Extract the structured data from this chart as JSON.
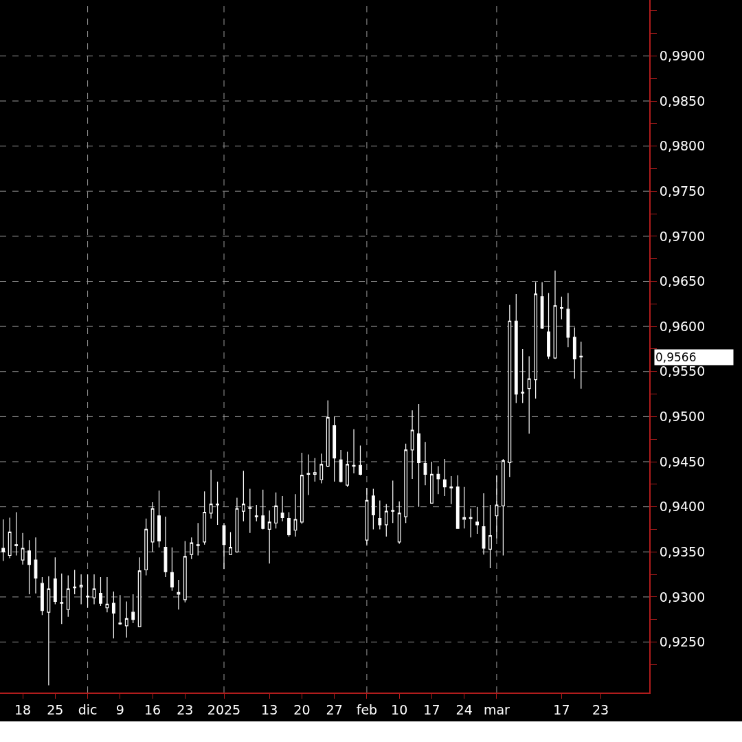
{
  "chart_data": {
    "type": "candlestick",
    "color": "#ffffff",
    "grid": "y",
    "categories": [
      null,
      null,
      null,
      "18",
      null,
      null,
      null,
      null,
      "25",
      null,
      null,
      null,
      null,
      "dic",
      null,
      null,
      null,
      null,
      "9",
      null,
      null,
      null,
      null,
      "16",
      null,
      null,
      null,
      null,
      "23",
      null,
      null,
      null,
      null,
      null,
      "2025",
      null,
      null,
      null,
      null,
      null,
      null,
      "13",
      null,
      null,
      null,
      null,
      "20",
      null,
      null,
      null,
      null,
      "27",
      null,
      null,
      null,
      null,
      "feb",
      null,
      null,
      null,
      null,
      "10",
      null,
      null,
      null,
      null,
      "17",
      null,
      null,
      null,
      null,
      "24",
      null,
      null,
      null,
      null,
      "mar",
      null,
      null,
      null,
      null,
      null,
      null,
      null,
      null,
      null,
      "17",
      null,
      null,
      null,
      null,
      null,
      "23",
      null,
      null,
      null,
      null,
      null,
      null,
      null
    ],
    "ohlc": [
      [
        0.9354,
        0.9386,
        0.934,
        0.935
      ],
      [
        0.9346,
        0.9388,
        0.9343,
        0.9372
      ],
      [
        0.9358,
        0.9394,
        0.9346,
        0.9357
      ],
      [
        0.9341,
        0.9371,
        0.9336,
        0.9354
      ],
      [
        0.9351,
        0.9363,
        0.9303,
        0.9336
      ],
      [
        0.9341,
        0.9366,
        0.9304,
        0.9321
      ],
      [
        0.9315,
        0.9322,
        0.928,
        0.9285
      ],
      [
        0.9283,
        0.9323,
        0.9202,
        0.9309
      ],
      [
        0.932,
        0.9344,
        0.9292,
        0.9295
      ],
      [
        0.9294,
        0.9326,
        0.927,
        0.9293
      ],
      [
        0.9286,
        0.9324,
        0.9278,
        0.9309
      ],
      [
        0.9311,
        0.933,
        0.9303,
        0.931
      ],
      [
        0.9311,
        0.9325,
        0.9292,
        0.9313
      ],
      [
        0.9301,
        0.9325,
        0.9288,
        0.93
      ],
      [
        0.9299,
        0.9325,
        0.9292,
        0.9309
      ],
      [
        0.9304,
        0.9322,
        0.929,
        0.9293
      ],
      [
        0.9288,
        0.9322,
        0.9283,
        0.9292
      ],
      [
        0.9293,
        0.9306,
        0.9254,
        0.9282
      ],
      [
        0.9271,
        0.9302,
        0.9269,
        0.927
      ],
      [
        0.9268,
        0.9295,
        0.9255,
        0.9276
      ],
      [
        0.9283,
        0.9303,
        0.9271,
        0.9275
      ],
      [
        0.9267,
        0.9344,
        0.9267,
        0.9329
      ],
      [
        0.933,
        0.9387,
        0.9324,
        0.9375
      ],
      [
        0.9361,
        0.9405,
        0.935,
        0.9398
      ],
      [
        0.939,
        0.9418,
        0.9355,
        0.9362
      ],
      [
        0.9355,
        0.9389,
        0.9322,
        0.9328
      ],
      [
        0.9327,
        0.9355,
        0.9307,
        0.9311
      ],
      [
        0.9303,
        0.9319,
        0.9286,
        0.9305
      ],
      [
        0.9297,
        0.9362,
        0.9294,
        0.9345
      ],
      [
        0.9347,
        0.9366,
        0.9342,
        0.936
      ],
      [
        0.9358,
        0.9382,
        0.9346,
        0.9357
      ],
      [
        0.9361,
        0.9417,
        0.9358,
        0.9394
      ],
      [
        0.9393,
        0.9441,
        0.9387,
        0.9403
      ],
      [
        0.9403,
        0.9428,
        0.938,
        0.9402
      ],
      [
        0.9379,
        0.9382,
        0.9331,
        0.9358
      ],
      [
        0.9347,
        0.9372,
        0.9347,
        0.9355
      ],
      [
        0.935,
        0.941,
        0.9349,
        0.9398
      ],
      [
        0.9395,
        0.944,
        0.9384,
        0.9403
      ],
      [
        0.9399,
        0.942,
        0.9371,
        0.9398
      ],
      [
        0.939,
        0.9402,
        0.9384,
        0.9389
      ],
      [
        0.939,
        0.9419,
        0.9375,
        0.9376
      ],
      [
        0.9375,
        0.9396,
        0.9337,
        0.9383
      ],
      [
        0.9382,
        0.9416,
        0.9376,
        0.9401
      ],
      [
        0.9393,
        0.9412,
        0.9384,
        0.9388
      ],
      [
        0.9387,
        0.9394,
        0.9367,
        0.9369
      ],
      [
        0.9374,
        0.9414,
        0.9367,
        0.9386
      ],
      [
        0.9383,
        0.946,
        0.9381,
        0.9435
      ],
      [
        0.9437,
        0.9458,
        0.9413,
        0.9436
      ],
      [
        0.9436,
        0.9454,
        0.9428,
        0.9438
      ],
      [
        0.943,
        0.9459,
        0.9426,
        0.9447
      ],
      [
        0.9445,
        0.9518,
        0.9444,
        0.9499
      ],
      [
        0.949,
        0.95,
        0.9428,
        0.9454
      ],
      [
        0.9452,
        0.9463,
        0.9427,
        0.9428
      ],
      [
        0.9424,
        0.9461,
        0.9422,
        0.9447
      ],
      [
        0.9446,
        0.9486,
        0.9437,
        0.9445
      ],
      [
        0.9446,
        0.9468,
        0.9435,
        0.9436
      ],
      [
        0.9363,
        0.9421,
        0.9357,
        0.9407
      ],
      [
        0.9412,
        0.942,
        0.9375,
        0.9391
      ],
      [
        0.9387,
        0.9407,
        0.9375,
        0.938
      ],
      [
        0.938,
        0.9403,
        0.9367,
        0.9395
      ],
      [
        0.9396,
        0.9429,
        0.9382,
        0.9395
      ],
      [
        0.9361,
        0.9406,
        0.9359,
        0.9393
      ],
      [
        0.9389,
        0.947,
        0.9382,
        0.9463
      ],
      [
        0.9463,
        0.9507,
        0.9431,
        0.9485
      ],
      [
        0.9481,
        0.9514,
        0.94,
        0.9449
      ],
      [
        0.9448,
        0.9472,
        0.9424,
        0.9436
      ],
      [
        0.9404,
        0.945,
        0.9404,
        0.9436
      ],
      [
        0.9436,
        0.9445,
        0.9414,
        0.9431
      ],
      [
        0.943,
        0.9453,
        0.9412,
        0.9422
      ],
      [
        0.9422,
        0.9434,
        0.9403,
        0.9421
      ],
      [
        0.9422,
        0.9435,
        0.9376,
        0.9376
      ],
      [
        0.9386,
        0.9422,
        0.9376,
        0.9388
      ],
      [
        0.9388,
        0.9398,
        0.9366,
        0.9387
      ],
      [
        0.9383,
        0.94,
        0.937,
        0.938
      ],
      [
        0.9378,
        0.9415,
        0.9347,
        0.9354
      ],
      [
        0.9353,
        0.9402,
        0.9332,
        0.9368
      ],
      [
        0.939,
        0.9435,
        0.9365,
        0.9402
      ],
      [
        0.9401,
        0.9453,
        0.9346,
        0.9451
      ],
      [
        0.9449,
        0.9624,
        0.9433,
        0.9606
      ],
      [
        0.9606,
        0.9636,
        0.9515,
        0.9525
      ],
      [
        0.9527,
        0.9575,
        0.9515,
        0.9526
      ],
      [
        0.9531,
        0.9567,
        0.9481,
        0.9542
      ],
      [
        0.9541,
        0.9649,
        0.952,
        0.9636
      ],
      [
        0.9633,
        0.9649,
        0.9597,
        0.9598
      ],
      [
        0.9594,
        0.9637,
        0.9564,
        0.9567
      ],
      [
        0.9565,
        0.9662,
        0.9564,
        0.9623
      ],
      [
        0.962,
        0.9633,
        0.9608,
        0.9621
      ],
      [
        0.9619,
        0.9637,
        0.9577,
        0.9588
      ],
      [
        0.9588,
        0.9599,
        0.9542,
        0.9564
      ],
      [
        0.9567,
        0.9583,
        0.9531,
        0.9566
      ],
      null,
      null,
      null,
      null,
      null,
      null,
      null,
      null,
      null,
      null
    ],
    "ylim": [
      0.9194,
      0.9962
    ],
    "yticks": [
      {
        "value": 0.9225,
        "label": null
      },
      {
        "value": 0.925,
        "label": "0,9250"
      },
      {
        "value": 0.9275,
        "label": null
      },
      {
        "value": 0.93,
        "label": "0,9300"
      },
      {
        "value": 0.9325,
        "label": null
      },
      {
        "value": 0.935,
        "label": "0,9350"
      },
      {
        "value": 0.9375,
        "label": null
      },
      {
        "value": 0.94,
        "label": "0,9400"
      },
      {
        "value": 0.9425,
        "label": null
      },
      {
        "value": 0.945,
        "label": "0,9450"
      },
      {
        "value": 0.9475,
        "label": null
      },
      {
        "value": 0.95,
        "label": "0,9500"
      },
      {
        "value": 0.9525,
        "label": null
      },
      {
        "value": 0.955,
        "label": "0,9550"
      },
      {
        "value": 0.9575,
        "label": null
      },
      {
        "value": 0.96,
        "label": "0,9600"
      },
      {
        "value": 0.9625,
        "label": null
      },
      {
        "value": 0.965,
        "label": "0,9650"
      },
      {
        "value": 0.9675,
        "label": null
      },
      {
        "value": 0.97,
        "label": "0,9700"
      },
      {
        "value": 0.9725,
        "label": null
      },
      {
        "value": 0.975,
        "label": "0,9750"
      },
      {
        "value": 0.9775,
        "label": null
      },
      {
        "value": 0.98,
        "label": "0,9800"
      },
      {
        "value": 0.9825,
        "label": null
      },
      {
        "value": 0.985,
        "label": "0,9850"
      },
      {
        "value": 0.9875,
        "label": null
      },
      {
        "value": 0.99,
        "label": "0,9900"
      },
      {
        "value": 0.9925,
        "label": null
      },
      {
        "value": 0.995,
        "label": null
      }
    ],
    "ref_lines": [
      {
        "axis": "x",
        "value": "dic",
        "color": "#9a9a9a",
        "line_style": "dashed"
      },
      {
        "axis": "x",
        "value": "2025",
        "color": "#9a9a9a",
        "line_style": "dashed"
      },
      {
        "axis": "x",
        "value": "feb",
        "color": "#9a9a9a",
        "line_style": "dashed"
      },
      {
        "axis": "x",
        "value": "mar",
        "color": "#9a9a9a",
        "line_style": "dashed"
      }
    ],
    "annotations": [
      "0,9566"
    ]
  }
}
